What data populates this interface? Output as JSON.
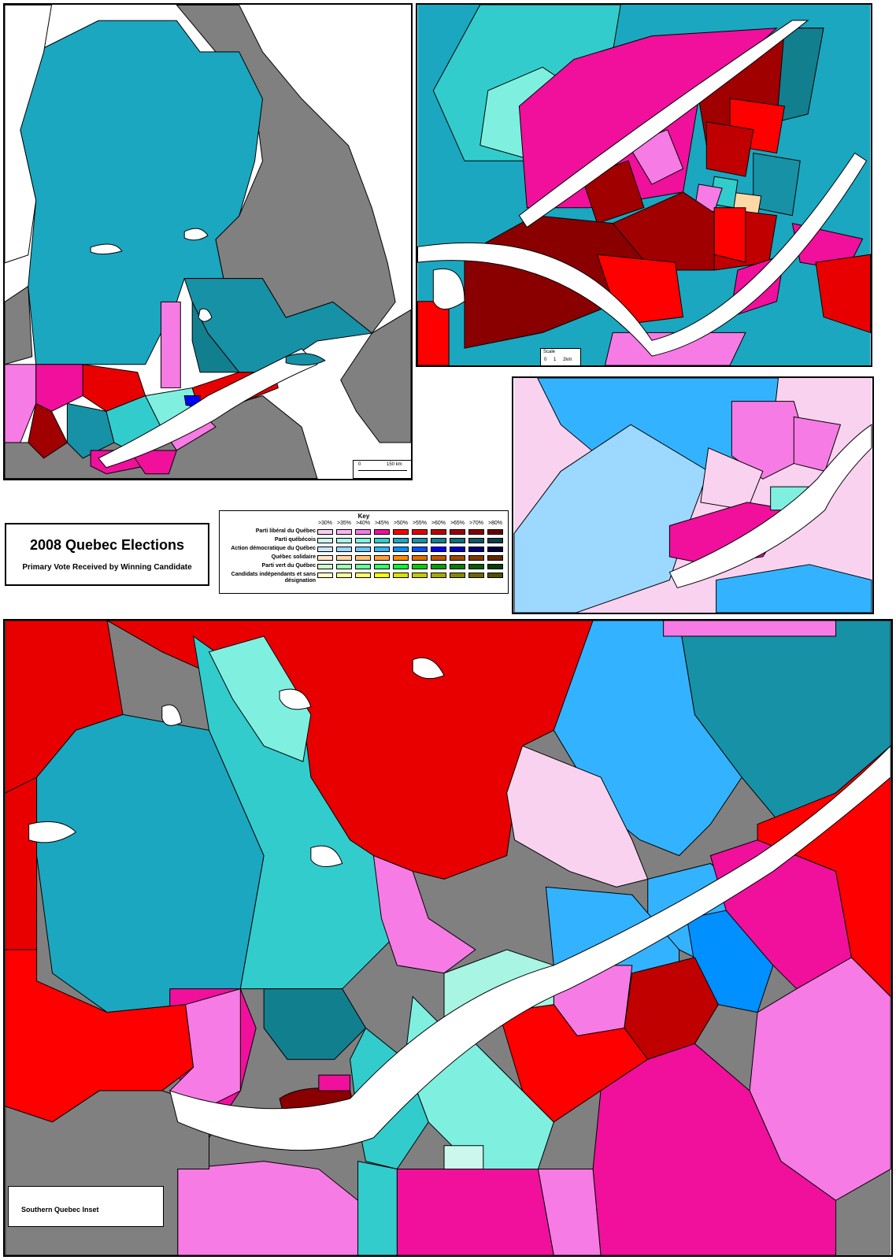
{
  "title": {
    "main": "2008 Quebec  Elections",
    "sub": "Primary Vote Received by Winning Candidate"
  },
  "key": {
    "title": "Key",
    "thresholds": [
      ">30%",
      ">35%",
      ">40%",
      ">45%",
      ">50%",
      ">55%",
      ">60%",
      ">65%",
      ">70%",
      ">80%"
    ],
    "parties": [
      {
        "name": "Parti libéral du Québec",
        "colors": [
          "#f9d2f0",
          "#f9b6ee",
          "#f77be4",
          "#f0109c",
          "#ff0000",
          "#e80000",
          "#c00000",
          "#a00000",
          "#8a0000",
          "#6a0000"
        ]
      },
      {
        "name": "Parti québécois",
        "colors": [
          "#ccf7ec",
          "#a8f5e4",
          "#7ff0e0",
          "#33cccc",
          "#1ba7c0",
          "#1791a6",
          "#127f8f",
          "#0e6d7a",
          "#0b5a63",
          "#08404a"
        ]
      },
      {
        "name": "Action démocratique du Québec",
        "colors": [
          "#c8e8ff",
          "#9cd8ff",
          "#66c8ff",
          "#33b3ff",
          "#0090ff",
          "#0050ff",
          "#0000ff",
          "#0000c0",
          "#00007a",
          "#000040"
        ]
      },
      {
        "name": "Québec solidaire",
        "colors": [
          "#ffe8cc",
          "#ffd8a8",
          "#ffc078",
          "#ffa040",
          "#ff8c00",
          "#e07000",
          "#c05800",
          "#a04800",
          "#803800",
          "#602800"
        ]
      },
      {
        "name": "Parti vert du Québec",
        "colors": [
          "#ccffcc",
          "#a0ffb0",
          "#66ff99",
          "#33ff66",
          "#00ff33",
          "#00d000",
          "#00a000",
          "#008000",
          "#006000",
          "#004000"
        ]
      },
      {
        "name": "Candidats indépendants et sans désignation",
        "colors": [
          "#ffffcc",
          "#ffff99",
          "#ffff66",
          "#ffff00",
          "#e0e000",
          "#c8c800",
          "#a8a800",
          "#888800",
          "#6a6a00",
          "#505000"
        ]
      }
    ]
  },
  "scales": {
    "province": {
      "label_zero": "0",
      "label_end": "150 km"
    },
    "montreal": {
      "title": "Scale",
      "ticks": [
        "0",
        "1",
        "2km"
      ]
    }
  },
  "inset_label": "Southern Quebec Inset",
  "colors": {
    "land_outside": "#808080",
    "water": "#ffffff",
    "border": "#000000"
  }
}
